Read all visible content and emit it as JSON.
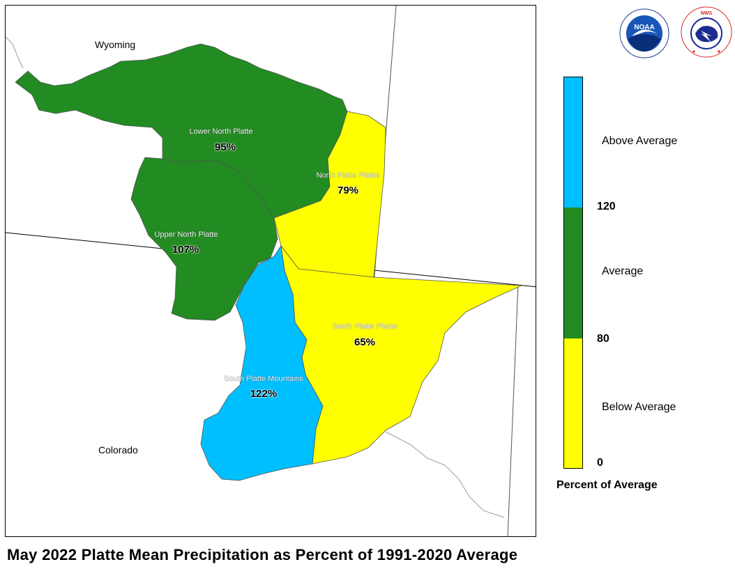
{
  "title": "May 2022 Platte Mean Precipitation as Percent of 1991-2020 Average",
  "state_labels": {
    "wyoming": "Wyoming",
    "colorado": "Colorado"
  },
  "basins": [
    {
      "name": "Lower North Platte",
      "value": "95%",
      "category": "Average"
    },
    {
      "name": "North Platte Plains",
      "value": "79%",
      "category": "Below Average"
    },
    {
      "name": "Upper North Platte",
      "value": "107%",
      "category": "Average"
    },
    {
      "name": "South Platte Plains",
      "value": "65%",
      "category": "Below Average"
    },
    {
      "name": "South Platte Mountains",
      "value": "122%",
      "category": "Above Average"
    }
  ],
  "legend": {
    "title": "Percent of Average",
    "categories": [
      "Above Average",
      "Average",
      "Below Average"
    ],
    "ticks": [
      "120",
      "80",
      "0"
    ],
    "colors": {
      "above": "#00bfff",
      "average": "#228b22",
      "below": "#ffff00"
    }
  },
  "logos": [
    {
      "name": "noaa-logo",
      "text": "NOAA"
    },
    {
      "name": "nws-logo",
      "text": "NATIONAL WEATHER SERVICE"
    }
  ]
}
